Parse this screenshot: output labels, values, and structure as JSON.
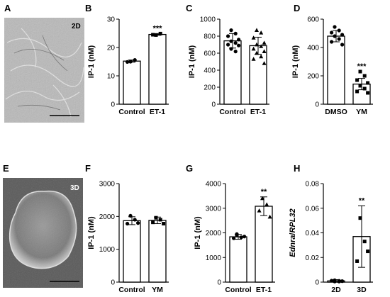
{
  "images": [
    {
      "letter": "A",
      "tag": "2D"
    },
    {
      "letter": "E",
      "tag": "3D"
    }
  ],
  "chart_data": [
    {
      "panel": "B",
      "type": "bar",
      "ylabel": "IP-1 (nM)",
      "ylim": [
        0,
        30
      ],
      "yticks": [
        0,
        10,
        20,
        30
      ],
      "categories": [
        "Control",
        "ET-1"
      ],
      "values": [
        15.2,
        24.6
      ],
      "errors": [
        0.4,
        0.3
      ],
      "points": [
        [
          15.0,
          15.6,
          14.9
        ],
        [
          24.4,
          24.9,
          24.5
        ]
      ],
      "markers": [
        "circle",
        "square"
      ],
      "significance": [
        "",
        "***"
      ]
    },
    {
      "panel": "C",
      "type": "bar",
      "ylabel": "IP-1 (nM)",
      "ylim": [
        0,
        1000
      ],
      "yticks": [
        0,
        200,
        400,
        600,
        800,
        1000
      ],
      "categories": [
        "Control",
        "ET-1"
      ],
      "values": [
        745,
        688
      ],
      "errors": [
        85,
        100
      ],
      "points": [
        [
          870,
          830,
          800,
          760,
          740,
          720,
          700,
          690,
          650,
          620
        ],
        [
          870,
          840,
          780,
          720,
          700,
          680,
          650,
          620,
          600,
          560,
          530,
          480
        ]
      ],
      "markers": [
        "circle",
        "triangle"
      ],
      "significance": [
        "",
        ""
      ]
    },
    {
      "panel": "D",
      "type": "bar",
      "ylabel": "IP-1 (nM)",
      "ylim": [
        0,
        600
      ],
      "yticks": [
        0,
        200,
        400,
        600
      ],
      "categories": [
        "DMSO",
        "YM"
      ],
      "values": [
        480,
        142
      ],
      "errors": [
        40,
        40
      ],
      "points": [
        [
          545,
          520,
          505,
          490,
          480,
          460,
          440,
          420
        ],
        [
          230,
          200,
          170,
          150,
          130,
          110,
          90,
          80
        ]
      ],
      "markers": [
        "circle",
        "square"
      ],
      "significance": [
        "",
        "***"
      ]
    },
    {
      "panel": "F",
      "type": "bar",
      "ylabel": "IP-1 (nM)",
      "ylim": [
        0,
        3000
      ],
      "yticks": [
        0,
        1000,
        2000,
        3000
      ],
      "categories": [
        "Control",
        "YM"
      ],
      "values": [
        1870,
        1880
      ],
      "errors": [
        120,
        100
      ],
      "points": [
        [
          2020,
          1900,
          1780,
          1800
        ],
        [
          1960,
          1900,
          1820,
          1780
        ]
      ],
      "markers": [
        "circle",
        "square"
      ],
      "significance": [
        "",
        ""
      ]
    },
    {
      "panel": "G",
      "type": "bar",
      "ylabel": "IP-1 (nM)",
      "ylim": [
        0,
        4000
      ],
      "yticks": [
        0,
        1000,
        2000,
        3000,
        4000
      ],
      "categories": [
        "Control",
        "ET-1"
      ],
      "values": [
        1840,
        3080
      ],
      "errors": [
        100,
        380
      ],
      "points": [
        [
          1900,
          1820,
          1780,
          1850,
          1950
        ],
        [
          3400,
          3150,
          2900,
          2650
        ]
      ],
      "markers": [
        "circle",
        "triangle"
      ],
      "significance": [
        "",
        "**"
      ]
    },
    {
      "panel": "H",
      "type": "bar",
      "ylabel": "Ednra/RPL32",
      "ylim": [
        0,
        0.08
      ],
      "yticks": [
        0,
        0.02,
        0.04,
        0.06,
        0.08
      ],
      "categories": [
        "2D",
        "3D"
      ],
      "values": [
        0.001,
        0.037
      ],
      "errors": [
        0.001,
        0.025
      ],
      "points": [
        [
          0.0005,
          0.001,
          0.0012,
          0.0008,
          0.0015,
          0.0005
        ],
        [
          0.052,
          0.033,
          0.017,
          0.025
        ]
      ],
      "markers": [
        "circle",
        "square"
      ],
      "significance": [
        "",
        "**"
      ]
    }
  ]
}
